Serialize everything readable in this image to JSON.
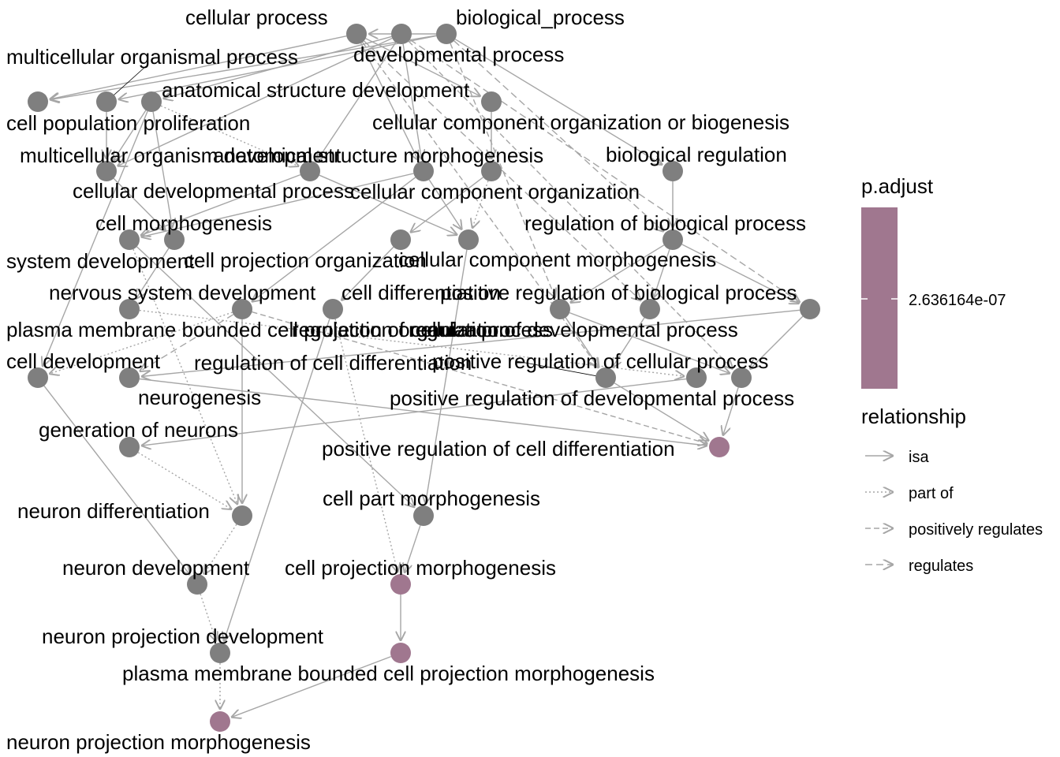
{
  "colors": {
    "node_default": "#7f7f7f",
    "node_significant": "#a0778f",
    "edge": "#a6a6a6",
    "text": "#000000"
  },
  "nodes": [
    {
      "id": "cellular_process",
      "label": "cellular process",
      "significant": false
    },
    {
      "id": "developmental_process",
      "label": "developmental process",
      "significant": false
    },
    {
      "id": "biological_process",
      "label": "biological_process",
      "significant": false
    },
    {
      "id": "cell_population_proliferation",
      "label": "cell population proliferation",
      "significant": false
    },
    {
      "id": "multicellular_organismal_process",
      "label": "multicellular organismal process",
      "significant": false
    },
    {
      "id": "anatomical_structure_development",
      "label": "anatomical structure development",
      "significant": false
    },
    {
      "id": "cellular_component_organization_or_biogenesis",
      "label": "cellular component organization or biogenesis",
      "significant": false
    },
    {
      "id": "multicellular_organism_development",
      "label": "multicellular organism development",
      "significant": false
    },
    {
      "id": "anatomical_structure_morphogenesis",
      "label": "anatomical structure morphogenesis",
      "significant": false
    },
    {
      "id": "cellular_developmental_process",
      "label": "cellular developmental process",
      "significant": false
    },
    {
      "id": "cellular_component_organization",
      "label": "cellular component organization",
      "significant": false
    },
    {
      "id": "biological_regulation",
      "label": "biological regulation",
      "significant": false
    },
    {
      "id": "cell_morphogenesis",
      "label": "cell morphogenesis",
      "significant": false
    },
    {
      "id": "system_development",
      "label": "system development",
      "significant": false
    },
    {
      "id": "cell_projection_organization",
      "label": "cell projection organization",
      "significant": false
    },
    {
      "id": "cellular_component_morphogenesis",
      "label": "cellular component morphogenesis",
      "significant": false
    },
    {
      "id": "regulation_of_biological_process",
      "label": "regulation of biological process",
      "significant": false
    },
    {
      "id": "nervous_system_development",
      "label": "nervous system development",
      "significant": false
    },
    {
      "id": "cell_differentiation",
      "label": "cell differentiation",
      "significant": false
    },
    {
      "id": "plasma_membrane_bounded_cell_projection_organization",
      "label": "plasma membrane bounded cell projection organization",
      "significant": false
    },
    {
      "id": "positive_regulation_of_biological_process",
      "label": "positive regulation of biological process",
      "significant": false
    },
    {
      "id": "regulation_of_cellular_process",
      "label": "regulation of cellular process",
      "significant": false
    },
    {
      "id": "regulation_of_developmental_process",
      "label": "regulation of developmental process",
      "significant": false
    },
    {
      "id": "cell_development",
      "label": "cell development",
      "significant": false
    },
    {
      "id": "regulation_of_cell_differentiation",
      "label": "regulation of cell differentiation",
      "significant": false
    },
    {
      "id": "positive_regulation_of_cellular_process",
      "label": "positive regulation of cellular process",
      "significant": false
    },
    {
      "id": "neurogenesis",
      "label": "neurogenesis",
      "significant": false
    },
    {
      "id": "positive_regulation_of_developmental_process",
      "label": "positive regulation of developmental process",
      "significant": false
    },
    {
      "id": "generation_of_neurons",
      "label": "generation of neurons",
      "significant": false
    },
    {
      "id": "positive_regulation_of_cell_differentiation",
      "label": "positive regulation of cell differentiation",
      "significant": true
    },
    {
      "id": "cell_part_morphogenesis",
      "label": "cell part morphogenesis",
      "significant": false
    },
    {
      "id": "neuron_differentiation",
      "label": "neuron differentiation",
      "significant": false
    },
    {
      "id": "neuron_development",
      "label": "neuron development",
      "significant": false
    },
    {
      "id": "cell_projection_morphogenesis",
      "label": "cell projection morphogenesis",
      "significant": true
    },
    {
      "id": "neuron_projection_development",
      "label": "neuron projection development",
      "significant": false
    },
    {
      "id": "plasma_membrane_bounded_cell_projection_morphogenesis",
      "label": "plasma membrane bounded cell projection morphogenesis",
      "significant": true
    },
    {
      "id": "neuron_projection_morphogenesis",
      "label": "neuron projection morphogenesis",
      "significant": true
    }
  ],
  "edges": [
    {
      "from": "cellular_process",
      "to": "cell_population_proliferation",
      "type": "isa"
    },
    {
      "from": "biological_process",
      "to": "cell_population_proliferation",
      "type": "isa"
    },
    {
      "from": "biological_process",
      "to": "multicellular_organismal_process",
      "type": "isa"
    },
    {
      "from": "biological_process",
      "to": "cellular_process",
      "type": "isa"
    },
    {
      "from": "biological_process",
      "to": "biological_regulation",
      "type": "isa"
    },
    {
      "from": "developmental_process",
      "to": "anatomical_structure_development",
      "type": "isa"
    },
    {
      "from": "developmental_process",
      "to": "anatomical_structure_morphogenesis",
      "type": "isa"
    },
    {
      "from": "developmental_process",
      "to": "cellular_developmental_process",
      "type": "isa"
    },
    {
      "from": "developmental_process",
      "to": "multicellular_organism_development",
      "type": "isa"
    },
    {
      "from": "developmental_process",
      "to": "regulation_of_developmental_process",
      "type": "regulates"
    },
    {
      "from": "developmental_process",
      "to": "positive_regulation_of_developmental_process",
      "type": "positively regulates"
    },
    {
      "from": "cellular_process",
      "to": "cellular_component_organization_or_biogenesis",
      "type": "isa"
    },
    {
      "from": "cellular_process",
      "to": "cellular_developmental_process",
      "type": "isa"
    },
    {
      "from": "cellular_process",
      "to": "regulation_of_cellular_process",
      "type": "regulates"
    },
    {
      "from": "cellular_process",
      "to": "positive_regulation_of_cellular_process",
      "type": "positively regulates"
    },
    {
      "from": "biological_process",
      "to": "regulation_of_biological_process",
      "type": "regulates"
    },
    {
      "from": "biological_process",
      "to": "positive_regulation_of_biological_process",
      "type": "positively regulates"
    },
    {
      "from": "multicellular_organismal_process",
      "to": "multicellular_organism_development",
      "type": "isa"
    },
    {
      "from": "anatomical_structure_development",
      "to": "multicellular_organism_development",
      "type": "isa"
    },
    {
      "from": "anatomical_structure_development",
      "to": "system_development",
      "type": "isa"
    },
    {
      "from": "anatomical_structure_development",
      "to": "cell_development",
      "type": "isa"
    },
    {
      "from": "anatomical_structure_development",
      "to": "anatomical_structure_morphogenesis",
      "type": "part of"
    },
    {
      "from": "cellular_component_organization_or_biogenesis",
      "to": "cellular_component_organization",
      "type": "isa"
    },
    {
      "from": "anatomical_structure_morphogenesis",
      "to": "cell_morphogenesis",
      "type": "isa"
    },
    {
      "from": "anatomical_structure_morphogenesis",
      "to": "cellular_component_morphogenesis",
      "type": "isa"
    },
    {
      "from": "cellular_developmental_process",
      "to": "cell_differentiation",
      "type": "isa"
    },
    {
      "from": "cellular_developmental_process",
      "to": "cell_morphogenesis",
      "type": "isa"
    },
    {
      "from": "cellular_developmental_process",
      "to": "cellular_component_morphogenesis",
      "type": "isa"
    },
    {
      "from": "cellular_component_organization",
      "to": "cell_projection_organization",
      "type": "isa"
    },
    {
      "from": "cellular_component_organization",
      "to": "cellular_component_morphogenesis",
      "type": "part of"
    },
    {
      "from": "biological_regulation",
      "to": "regulation_of_biological_process",
      "type": "isa"
    },
    {
      "from": "multicellular_organism_development",
      "to": "system_development",
      "type": "isa"
    },
    {
      "from": "cell_morphogenesis",
      "to": "cell_part_morphogenesis",
      "type": "isa"
    },
    {
      "from": "cell_morphogenesis",
      "to": "neuron_differentiation",
      "type": "part of"
    },
    {
      "from": "system_development",
      "to": "nervous_system_development",
      "type": "isa"
    },
    {
      "from": "cell_projection_organization",
      "to": "plasma_membrane_bounded_cell_projection_organization",
      "type": "isa"
    },
    {
      "from": "cellular_component_morphogenesis",
      "to": "cell_part_morphogenesis",
      "type": "isa"
    },
    {
      "from": "regulation_of_biological_process",
      "to": "positive_regulation_of_biological_process",
      "type": "isa"
    },
    {
      "from": "regulation_of_biological_process",
      "to": "regulation_of_cellular_process",
      "type": "isa"
    },
    {
      "from": "regulation_of_biological_process",
      "to": "regulation_of_developmental_process",
      "type": "isa"
    },
    {
      "from": "nervous_system_development",
      "to": "neurogenesis",
      "type": "part of"
    },
    {
      "from": "cell_differentiation",
      "to": "cell_development",
      "type": "part of"
    },
    {
      "from": "cell_differentiation",
      "to": "neuron_differentiation",
      "type": "isa"
    },
    {
      "from": "cell_differentiation",
      "to": "regulation_of_cell_differentiation",
      "type": "regulates"
    },
    {
      "from": "cell_differentiation",
      "to": "positive_regulation_of_cell_differentiation",
      "type": "positively regulates"
    },
    {
      "from": "plasma_membrane_bounded_cell_projection_organization",
      "to": "cell_projection_morphogenesis",
      "type": "part of"
    },
    {
      "from": "plasma_membrane_bounded_cell_projection_organization",
      "to": "neuron_projection_development",
      "type": "isa"
    },
    {
      "from": "positive_regulation_of_biological_process",
      "to": "positive_regulation_of_cellular_process",
      "type": "isa"
    },
    {
      "from": "positive_regulation_of_biological_process",
      "to": "positive_regulation_of_developmental_process",
      "type": "isa"
    },
    {
      "from": "regulation_of_cellular_process",
      "to": "positive_regulation_of_cellular_process",
      "type": "isa"
    },
    {
      "from": "regulation_of_developmental_process",
      "to": "positive_regulation_of_developmental_process",
      "type": "isa"
    },
    {
      "from": "regulation_of_developmental_process",
      "to": "regulation_of_cell_differentiation",
      "type": "isa"
    },
    {
      "from": "regulation_of_cell_differentiation",
      "to": "positive_regulation_of_cell_differentiation",
      "type": "isa"
    },
    {
      "from": "positive_regulation_of_cellular_process",
      "to": "positive_regulation_of_cell_differentiation",
      "type": "isa"
    },
    {
      "from": "positive_regulation_of_developmental_process",
      "to": "positive_regulation_of_cell_differentiation",
      "type": "isa"
    },
    {
      "from": "neurogenesis",
      "to": "generation_of_neurons",
      "type": "isa"
    },
    {
      "from": "generation_of_neurons",
      "to": "neuron_differentiation",
      "type": "part of"
    },
    {
      "from": "cell_development",
      "to": "neuron_development",
      "type": "isa"
    },
    {
      "from": "neuron_differentiation",
      "to": "neuron_development",
      "type": "part of"
    },
    {
      "from": "cell_part_morphogenesis",
      "to": "cell_projection_morphogenesis",
      "type": "isa"
    },
    {
      "from": "neuron_development",
      "to": "neuron_projection_development",
      "type": "part of"
    },
    {
      "from": "cell_projection_morphogenesis",
      "to": "plasma_membrane_bounded_cell_projection_morphogenesis",
      "type": "isa"
    },
    {
      "from": "plasma_membrane_bounded_cell_projection_morphogenesis",
      "to": "neuron_projection_morphogenesis",
      "type": "isa"
    },
    {
      "from": "neuron_projection_development",
      "to": "neuron_projection_morphogenesis",
      "type": "part of"
    }
  ],
  "legend": {
    "color_title": "p.adjust",
    "color_value": "2.636164e-07",
    "relationship_title": "relationship",
    "items": [
      {
        "label": "isa",
        "type": "isa"
      },
      {
        "label": "part of",
        "type": "part of"
      },
      {
        "label": "positively regulates",
        "type": "positively regulates"
      },
      {
        "label": "regulates",
        "type": "regulates"
      }
    ]
  }
}
